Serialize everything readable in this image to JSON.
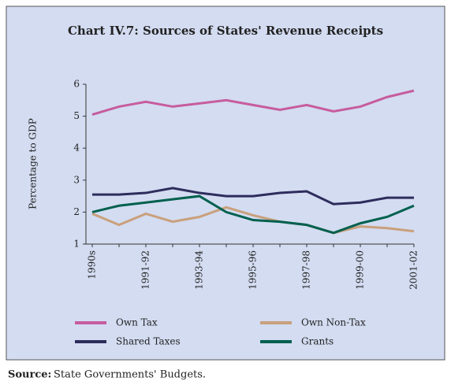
{
  "chart_data": {
    "type": "line",
    "title": "Chart IV.7: Sources of States' Revenue Receipts",
    "y_label": "Percentage to GDP",
    "categories": [
      "1990s",
      null,
      "1991-92",
      null,
      "1993-94",
      null,
      "1995-96",
      null,
      "1997-98",
      null,
      "1999-00",
      null,
      "2001-02"
    ],
    "series": [
      {
        "name": "Own Tax",
        "color": "#c75c9e",
        "values": [
          5.05,
          5.3,
          5.45,
          5.3,
          5.4,
          5.5,
          5.35,
          5.2,
          5.35,
          5.15,
          5.3,
          5.6,
          5.8
        ]
      },
      {
        "name": "Own Non-Tax",
        "color": "#c9a07c",
        "values": [
          1.95,
          1.6,
          1.95,
          1.7,
          1.85,
          2.15,
          1.9,
          1.7,
          1.6,
          1.35,
          1.55,
          1.5,
          1.4
        ]
      },
      {
        "name": "Shared Taxes",
        "color": "#2e2c5c",
        "values": [
          2.55,
          2.55,
          2.6,
          2.75,
          2.6,
          2.5,
          2.5,
          2.6,
          2.65,
          2.25,
          2.3,
          2.45,
          2.45
        ]
      },
      {
        "name": "Grants",
        "color": "#00604e",
        "values": [
          2.0,
          2.2,
          2.3,
          2.4,
          2.5,
          2.0,
          1.75,
          1.7,
          1.6,
          1.35,
          1.65,
          1.85,
          2.2
        ]
      }
    ],
    "ylim": [
      1,
      6
    ],
    "yticks": [
      1,
      2,
      3,
      4,
      5,
      6
    ],
    "source_label": "Source:",
    "source": "State Governments' Budgets."
  }
}
